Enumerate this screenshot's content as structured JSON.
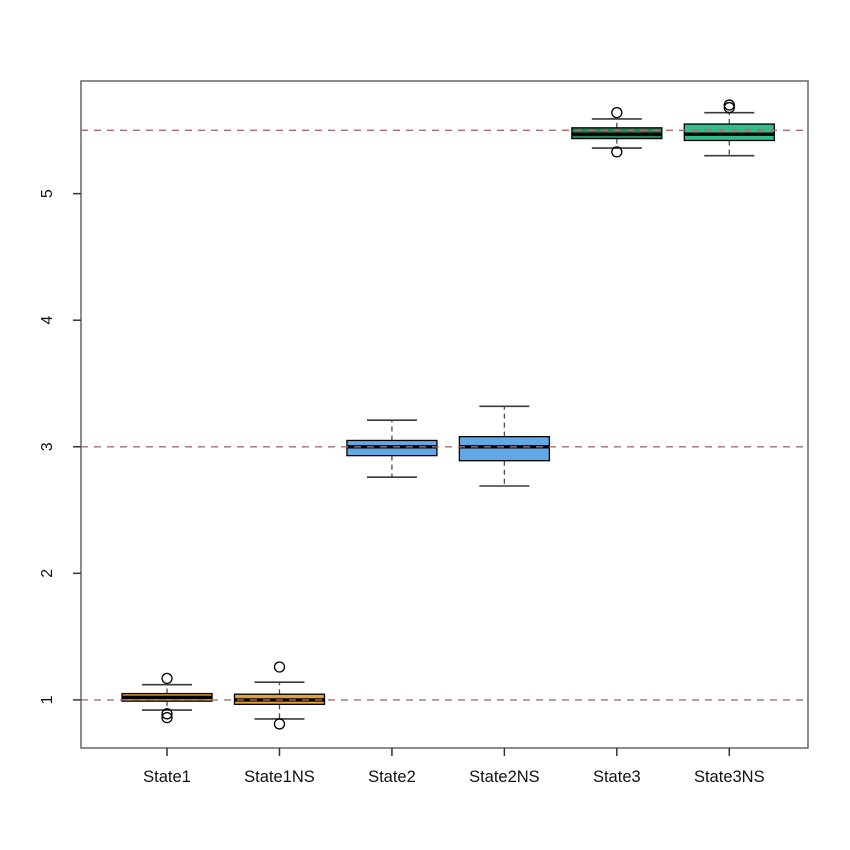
{
  "figure": {
    "background": "#ffffff",
    "title": ""
  },
  "chart_data": {
    "type": "boxplot",
    "title": "",
    "xlabel": "",
    "ylabel": "",
    "categories": [
      "State1",
      "State1NS",
      "State2",
      "State2NS",
      "State3",
      "State3NS"
    ],
    "series": [
      {
        "name": "State1",
        "color": "#E5A23C",
        "whisker_low": 0.92,
        "q1": 0.99,
        "median": 1.02,
        "q3": 1.05,
        "whisker_high": 1.12,
        "outliers": [
          1.17,
          0.89,
          0.86
        ]
      },
      {
        "name": "State1NS",
        "color": "#E5A23C",
        "whisker_low": 0.85,
        "q1": 0.965,
        "median": 1.0,
        "q3": 1.045,
        "whisker_high": 1.14,
        "outliers": [
          1.26,
          0.81
        ]
      },
      {
        "name": "State2",
        "color": "#63A8E6",
        "whisker_low": 2.76,
        "q1": 2.93,
        "median": 3.0,
        "q3": 3.05,
        "whisker_high": 3.21,
        "outliers": []
      },
      {
        "name": "State2NS",
        "color": "#63A8E6",
        "whisker_low": 2.69,
        "q1": 2.89,
        "median": 3.0,
        "q3": 3.08,
        "whisker_high": 3.32,
        "outliers": []
      },
      {
        "name": "State3",
        "color": "#1E8A5A",
        "whisker_low": 5.36,
        "q1": 5.435,
        "median": 5.47,
        "q3": 5.52,
        "whisker_high": 5.59,
        "outliers": [
          5.64,
          5.33
        ]
      },
      {
        "name": "State3NS",
        "color": "#2FBE8B",
        "whisker_low": 5.3,
        "q1": 5.42,
        "median": 5.47,
        "q3": 5.55,
        "whisker_high": 5.64,
        "outliers": [
          5.7,
          5.68
        ]
      }
    ],
    "ylim": [
      0.62,
      5.89
    ],
    "yticks": [
      1,
      2,
      3,
      4,
      5
    ],
    "reference_lines": {
      "values": [
        1,
        3,
        5.5
      ],
      "color": "#A5706B",
      "style": "dashed"
    },
    "grid": false,
    "legend": false
  },
  "style": {
    "frame_color": "#666666",
    "tick_color": "#333333",
    "tick_label_color": "#111111",
    "box_border_color": "#000000",
    "median_color": "#000000",
    "whisker_line_color": "#4a4a4a",
    "whisker_cap_color": "#3a3a3a",
    "outlier_stroke_color": "#000000"
  }
}
